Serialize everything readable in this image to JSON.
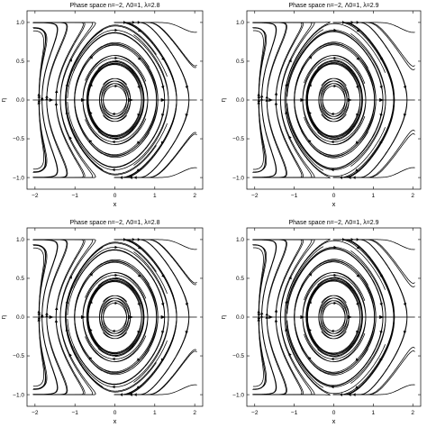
{
  "chart_data": [
    {
      "type": "streamplot",
      "title": "Phase space n=−2, Λ0=1, λ=2.8",
      "xlabel": "x",
      "ylabel": "η",
      "xlim": [
        -2.2,
        2.2
      ],
      "ylim": [
        -1.15,
        1.15
      ],
      "xticks": [
        -2,
        -1,
        0,
        1,
        2
      ],
      "xtick_labels": [
        "−2",
        "−1",
        "0",
        "1",
        "2"
      ],
      "yticks": [
        -1.0,
        -0.5,
        0.0,
        0.5,
        1.0
      ],
      "ytick_labels": [
        "−1.0",
        "−0.5",
        "0.0",
        "0.5",
        "1.0"
      ],
      "grid": false,
      "lambda": 2.8
    },
    {
      "type": "streamplot",
      "title": "Phase space n=−2, Λ0=1, λ=2.9",
      "xlabel": "x",
      "ylabel": "η",
      "xlim": [
        -2.2,
        2.2
      ],
      "ylim": [
        -1.15,
        1.15
      ],
      "xticks": [
        -2,
        -1,
        0,
        1,
        2
      ],
      "xtick_labels": [
        "−2",
        "−1",
        "0",
        "1",
        "2"
      ],
      "yticks": [
        -1.0,
        -0.5,
        0.0,
        0.5,
        1.0
      ],
      "ytick_labels": [
        "−1.0",
        "−0.5",
        "0.0",
        "0.5",
        "1.0"
      ],
      "grid": false,
      "lambda": 2.9
    },
    {
      "type": "streamplot",
      "title": "Phase space n=−2, Λ0=1, λ=2.8",
      "xlabel": "x",
      "ylabel": "η",
      "xlim": [
        -2.2,
        2.2
      ],
      "ylim": [
        -1.15,
        1.15
      ],
      "xticks": [
        -2,
        -1,
        0,
        1,
        2
      ],
      "xtick_labels": [
        "−2",
        "−1",
        "0",
        "1",
        "2"
      ],
      "yticks": [
        -1.0,
        -0.5,
        0.0,
        0.5,
        1.0
      ],
      "ytick_labels": [
        "−1.0",
        "−0.5",
        "0.0",
        "0.5",
        "1.0"
      ],
      "grid": false,
      "lambda": 2.8
    },
    {
      "type": "streamplot",
      "title": "Phase space n=−2, Λ0=1, λ=2.9",
      "xlabel": "x",
      "ylabel": "η",
      "xlim": [
        -2.2,
        2.2
      ],
      "ylim": [
        -1.15,
        1.15
      ],
      "xticks": [
        -2,
        -1,
        0,
        1,
        2
      ],
      "xtick_labels": [
        "−2",
        "−1",
        "0",
        "1",
        "2"
      ],
      "yticks": [
        -1.0,
        -0.5,
        0.0,
        0.5,
        1.0
      ],
      "ytick_labels": [
        "−1.0",
        "−0.5",
        "0.0",
        "0.5",
        "1.0"
      ],
      "grid": false,
      "lambda": 2.9
    }
  ]
}
